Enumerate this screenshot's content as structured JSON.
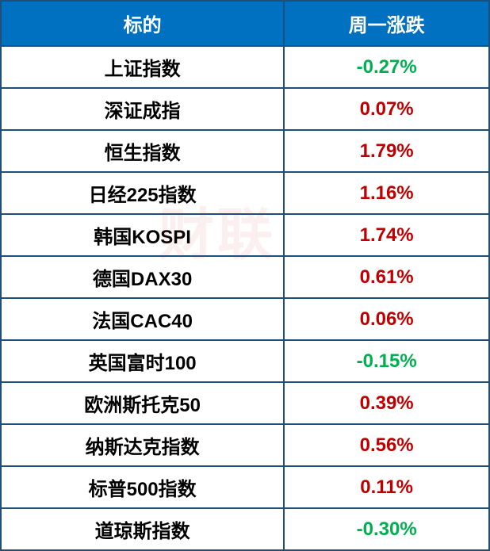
{
  "table": {
    "header_bg": "#0070c0",
    "header_text_color": "#ffffff",
    "border_color": "#1f4e79",
    "positive_color": "#c00000",
    "negative_color": "#00b050",
    "font_size": 24,
    "columns": [
      {
        "label": "标的",
        "width": "58%"
      },
      {
        "label": "周一涨跌",
        "width": "42%"
      }
    ],
    "rows": [
      {
        "name": "上证指数",
        "value": "-0.27%",
        "direction": "negative"
      },
      {
        "name": "深证成指",
        "value": "0.07%",
        "direction": "positive"
      },
      {
        "name": "恒生指数",
        "value": "1.79%",
        "direction": "positive"
      },
      {
        "name": "日经225指数",
        "value": "1.16%",
        "direction": "positive"
      },
      {
        "name": "韩国KOSPI",
        "value": "1.74%",
        "direction": "positive"
      },
      {
        "name": "德国DAX30",
        "value": "0.61%",
        "direction": "positive"
      },
      {
        "name": "法国CAC40",
        "value": "0.06%",
        "direction": "positive"
      },
      {
        "name": "英国富时100",
        "value": "-0.15%",
        "direction": "negative"
      },
      {
        "name": "欧洲斯托克50",
        "value": "0.39%",
        "direction": "positive"
      },
      {
        "name": "纳斯达克指数",
        "value": "0.56%",
        "direction": "positive"
      },
      {
        "name": "标普500指数",
        "value": "0.11%",
        "direction": "positive"
      },
      {
        "name": "道琼斯指数",
        "value": "-0.30%",
        "direction": "negative"
      }
    ]
  },
  "watermark": "财联"
}
